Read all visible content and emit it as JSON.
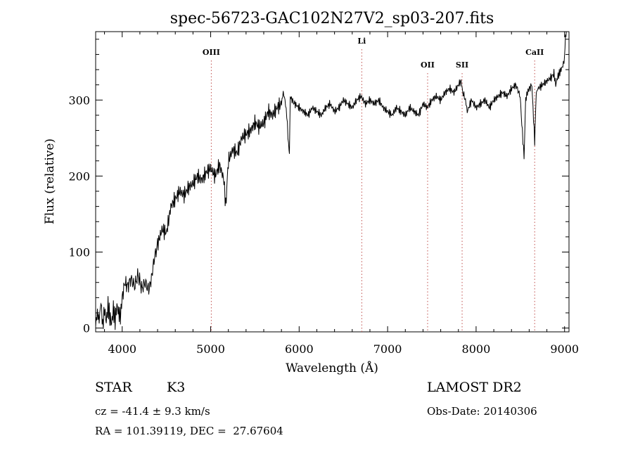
{
  "chart_data": {
    "type": "line",
    "title": "spec-56723-GAC102N27V2_sp03-207.fits",
    "xlabel": "Wavelength (Å)",
    "ylabel": "Flux (relative)",
    "xlim": [
      3700,
      9050
    ],
    "ylim": [
      -5,
      390
    ],
    "x_ticks": [
      4000,
      5000,
      6000,
      7000,
      8000,
      9000
    ],
    "y_ticks": [
      0,
      100,
      200,
      300
    ],
    "grid": false,
    "line_color": "#000000",
    "marker_color": "#c0504d",
    "lines": [
      {
        "label": "OIII",
        "wavelength": 5007
      },
      {
        "label": "Li",
        "wavelength": 6708
      },
      {
        "label": "OII",
        "wavelength": 7452
      },
      {
        "label": "SII",
        "wavelength": 7842
      },
      {
        "label": "CaII",
        "wavelength": 8662
      }
    ],
    "series": [
      {
        "x": [
          3700,
          3720,
          3740,
          3760,
          3780,
          3800,
          3820,
          3840,
          3860,
          3880,
          3900,
          3920,
          3940,
          3960,
          3980,
          4000,
          4030,
          4060,
          4100,
          4140,
          4180,
          4220,
          4260,
          4300,
          4330,
          4360,
          4400,
          4450,
          4500,
          4550,
          4600,
          4650,
          4700,
          4750,
          4800,
          4850,
          4900,
          4950,
          5000,
          5050,
          5100,
          5150,
          5170,
          5200,
          5250,
          5300,
          5350,
          5400,
          5450,
          5500,
          5550,
          5600,
          5650,
          5700,
          5750,
          5800,
          5820,
          5840,
          5860,
          5880,
          5890,
          5900,
          5920,
          5950,
          6000,
          6050,
          6100,
          6150,
          6200,
          6250,
          6300,
          6350,
          6400,
          6450,
          6500,
          6550,
          6600,
          6650,
          6700,
          6750,
          6800,
          6850,
          6900,
          6950,
          7000,
          7050,
          7100,
          7150,
          7200,
          7250,
          7300,
          7350,
          7400,
          7450,
          7500,
          7550,
          7600,
          7650,
          7700,
          7750,
          7800,
          7830,
          7850,
          7880,
          7900,
          7950,
          8000,
          8050,
          8100,
          8150,
          8200,
          8250,
          8300,
          8350,
          8400,
          8450,
          8498,
          8510,
          8542,
          8560,
          8580,
          8600,
          8630,
          8662,
          8680,
          8700,
          8750,
          8800,
          8850,
          8880,
          8900,
          8920,
          8940,
          8960,
          8980,
          9000,
          9010,
          9020
        ],
        "y": [
          5,
          20,
          10,
          35,
          2,
          25,
          8,
          30,
          15,
          5,
          25,
          10,
          30,
          20,
          15,
          40,
          60,
          55,
          65,
          55,
          70,
          52,
          60,
          50,
          65,
          90,
          110,
          130,
          125,
          160,
          170,
          180,
          175,
          185,
          190,
          200,
          195,
          205,
          210,
          200,
          215,
          195,
          160,
          220,
          235,
          230,
          250,
          255,
          260,
          270,
          265,
          270,
          285,
          280,
          290,
          295,
          310,
          300,
          280,
          240,
          225,
          305,
          300,
          295,
          290,
          285,
          280,
          290,
          285,
          280,
          290,
          295,
          285,
          290,
          300,
          295,
          290,
          300,
          305,
          295,
          300,
          295,
          300,
          290,
          285,
          280,
          290,
          285,
          280,
          290,
          285,
          280,
          295,
          290,
          300,
          305,
          300,
          310,
          315,
          310,
          320,
          325,
          310,
          300,
          285,
          300,
          290,
          295,
          300,
          290,
          300,
          305,
          310,
          305,
          315,
          320,
          305,
          280,
          225,
          300,
          310,
          315,
          320,
          245,
          310,
          315,
          320,
          325,
          330,
          335,
          320,
          330,
          335,
          340,
          345,
          355,
          385,
          390
        ]
      }
    ]
  },
  "info": {
    "object_class": "STAR",
    "subclass": "K3",
    "survey": "LAMOST DR2",
    "redshift": "cz = -41.4 ± 9.3 km/s",
    "obs_date": "Obs-Date: 20140306",
    "coords": "RA = 101.39119, DEC =  27.67604"
  }
}
